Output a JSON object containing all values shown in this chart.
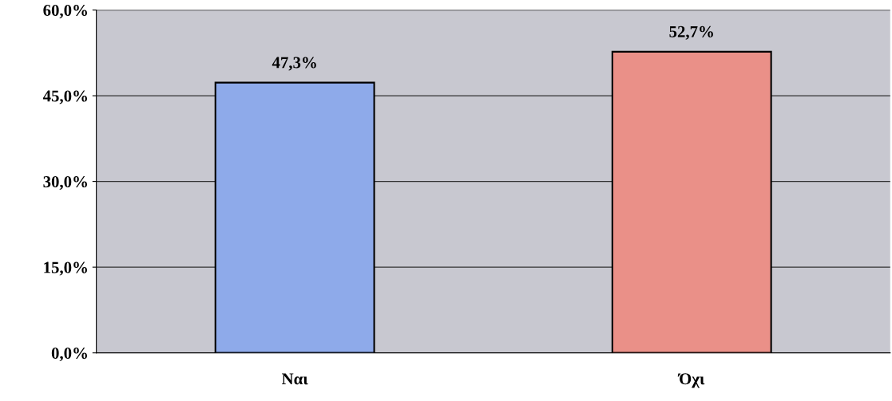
{
  "chart_data": {
    "type": "bar",
    "categories": [
      "Ναι",
      "Όχι"
    ],
    "values": [
      47.3,
      52.7
    ],
    "colors": [
      "#8eaaea",
      "#ea9088"
    ],
    "value_labels": [
      "47,3%",
      "52,7%"
    ],
    "ylim": [
      0,
      60
    ],
    "yticks": [
      {
        "value": 0,
        "label": "0,0%"
      },
      {
        "value": 15,
        "label": "15,0%"
      },
      {
        "value": 30,
        "label": "30,0%"
      },
      {
        "value": 45,
        "label": "45,0%"
      },
      {
        "value": 60,
        "label": "60,0%"
      }
    ],
    "grid": "y",
    "legend": false
  }
}
